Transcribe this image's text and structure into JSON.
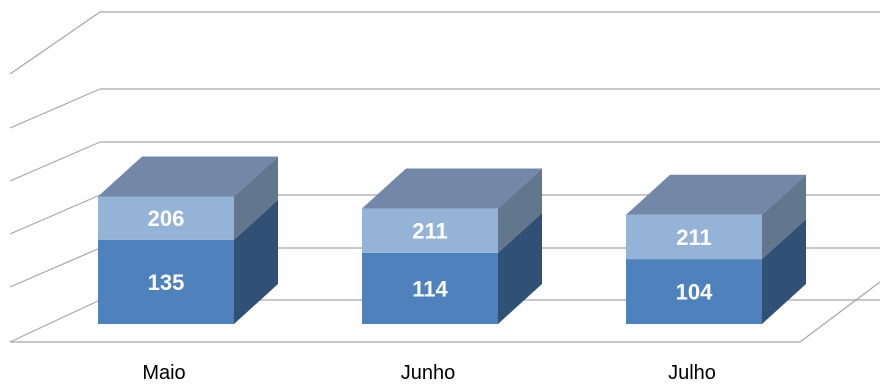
{
  "chart_data": {
    "type": "bar",
    "stacked": true,
    "three_d": true,
    "categories": [
      "Maio",
      "Junho",
      "Julho"
    ],
    "series": [
      {
        "values": [
          135,
          114,
          104
        ],
        "color": "#4f81bd"
      },
      {
        "values": [
          206,
          211,
          211
        ],
        "color": "#95b3d7"
      }
    ],
    "title": "",
    "xlabel": "",
    "ylabel": "",
    "ylim": [
      0,
      400
    ],
    "grid": true,
    "legend": "none"
  }
}
